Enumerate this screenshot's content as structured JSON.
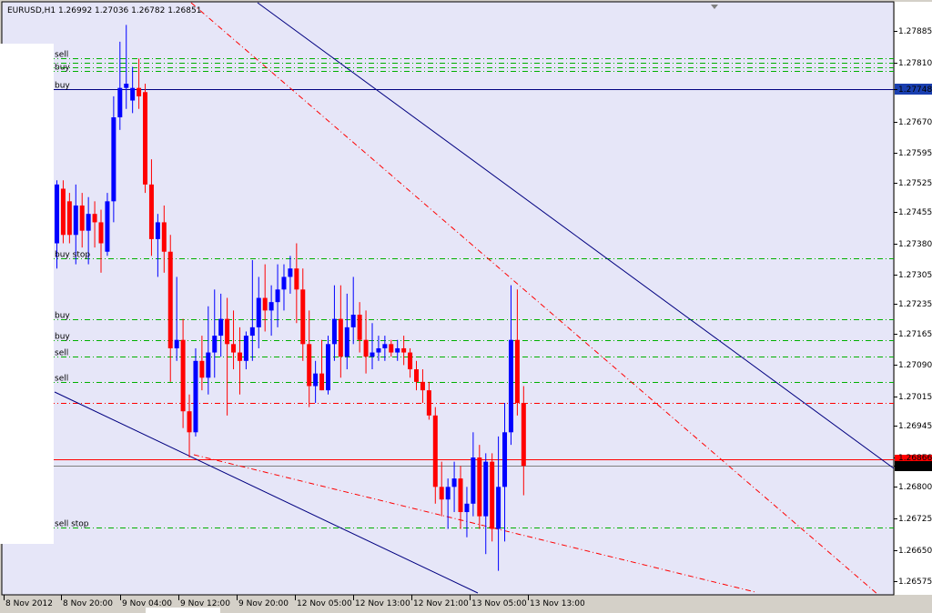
{
  "window": {
    "title": "EURUSD,H1  1.26992 1.27036 1.26782 1.26851"
  },
  "colors": {
    "background": "#e6e6f8",
    "bull": "#0000ff",
    "bear": "#ff0000",
    "grid_level": "#00b000",
    "trend_blue": "#000080",
    "trend_red": "#ff0000",
    "price_label_bg": "#000000",
    "blue_label_bg": "#1a3fb0"
  },
  "chart_data": {
    "type": "candlestick",
    "symbol": "EURUSD",
    "timeframe": "H1",
    "ylim": [
      1.26543,
      1.27955
    ],
    "y_ticks": [
      "1.27885",
      "1.27810",
      "1.27748",
      "1.27670",
      "1.27595",
      "1.27525",
      "1.27455",
      "1.27380",
      "1.27305",
      "1.27235",
      "1.27165",
      "1.27090",
      "1.27015",
      "1.26945",
      "1.26870",
      "1.26851",
      "1.26800",
      "1.26725",
      "1.26650",
      "1.26575"
    ],
    "x_ticks": [
      "8 Nov 2012",
      "8 Nov 20:00",
      "9 Nov 04:00",
      "9 Nov 12:00",
      "9 Nov 20:00",
      "12 Nov 05:00",
      "12 Nov 13:00",
      "12 Nov 21:00",
      "13 Nov 05:00",
      "13 Nov 13:00"
    ],
    "last_price": "1.26851",
    "marker_price": "1.27748",
    "bid_line": "1.26866",
    "candles": [
      {
        "o": 1.2738,
        "h": 1.2753,
        "l": 1.2732,
        "c": 1.2752
      },
      {
        "o": 1.2751,
        "h": 1.2753,
        "l": 1.2738,
        "c": 1.274
      },
      {
        "o": 1.2748,
        "h": 1.275,
        "l": 1.2738,
        "c": 1.274
      },
      {
        "o": 1.274,
        "h": 1.2752,
        "l": 1.2733,
        "c": 1.2747
      },
      {
        "o": 1.2747,
        "h": 1.275,
        "l": 1.2737,
        "c": 1.2741
      },
      {
        "o": 1.2741,
        "h": 1.2749,
        "l": 1.2733,
        "c": 1.2745
      },
      {
        "o": 1.2745,
        "h": 1.2748,
        "l": 1.2737,
        "c": 1.2743
      },
      {
        "o": 1.2743,
        "h": 1.2746,
        "l": 1.2731,
        "c": 1.2738
      },
      {
        "o": 1.2736,
        "h": 1.275,
        "l": 1.2735,
        "c": 1.2748
      },
      {
        "o": 1.2748,
        "h": 1.2773,
        "l": 1.2743,
        "c": 1.2768
      },
      {
        "o": 1.2768,
        "h": 1.2786,
        "l": 1.2765,
        "c": 1.2775
      },
      {
        "o": 1.2775,
        "h": 1.279,
        "l": 1.277,
        "c": 1.2776
      },
      {
        "o": 1.2772,
        "h": 1.278,
        "l": 1.2769,
        "c": 1.2775
      },
      {
        "o": 1.2775,
        "h": 1.2782,
        "l": 1.277,
        "c": 1.2773
      },
      {
        "o": 1.2774,
        "h": 1.2776,
        "l": 1.275,
        "c": 1.2752
      },
      {
        "o": 1.2752,
        "h": 1.2758,
        "l": 1.2735,
        "c": 1.2739
      },
      {
        "o": 1.2739,
        "h": 1.2745,
        "l": 1.273,
        "c": 1.2743
      },
      {
        "o": 1.2743,
        "h": 1.2747,
        "l": 1.2731,
        "c": 1.2736
      },
      {
        "o": 1.2736,
        "h": 1.274,
        "l": 1.2705,
        "c": 1.2713
      },
      {
        "o": 1.2713,
        "h": 1.273,
        "l": 1.271,
        "c": 1.2715
      },
      {
        "o": 1.2715,
        "h": 1.272,
        "l": 1.2694,
        "c": 1.2698
      },
      {
        "o": 1.2698,
        "h": 1.2702,
        "l": 1.2687,
        "c": 1.2693
      },
      {
        "o": 1.2693,
        "h": 1.2713,
        "l": 1.2692,
        "c": 1.271
      },
      {
        "o": 1.271,
        "h": 1.2716,
        "l": 1.2703,
        "c": 1.2706
      },
      {
        "o": 1.2706,
        "h": 1.2723,
        "l": 1.2702,
        "c": 1.2712
      },
      {
        "o": 1.2712,
        "h": 1.2727,
        "l": 1.2706,
        "c": 1.2716
      },
      {
        "o": 1.2716,
        "h": 1.2726,
        "l": 1.2711,
        "c": 1.272
      },
      {
        "o": 1.272,
        "h": 1.2725,
        "l": 1.2697,
        "c": 1.2714
      },
      {
        "o": 1.2714,
        "h": 1.2722,
        "l": 1.2708,
        "c": 1.2712
      },
      {
        "o": 1.2712,
        "h": 1.2718,
        "l": 1.2702,
        "c": 1.271
      },
      {
        "o": 1.271,
        "h": 1.2717,
        "l": 1.2708,
        "c": 1.2716
      },
      {
        "o": 1.2716,
        "h": 1.2734,
        "l": 1.271,
        "c": 1.2718
      },
      {
        "o": 1.2718,
        "h": 1.273,
        "l": 1.2713,
        "c": 1.2725
      },
      {
        "o": 1.2725,
        "h": 1.2733,
        "l": 1.2717,
        "c": 1.2722
      },
      {
        "o": 1.2722,
        "h": 1.2728,
        "l": 1.2716,
        "c": 1.2724
      },
      {
        "o": 1.2724,
        "h": 1.2733,
        "l": 1.2718,
        "c": 1.2727
      },
      {
        "o": 1.2727,
        "h": 1.2733,
        "l": 1.2722,
        "c": 1.273
      },
      {
        "o": 1.273,
        "h": 1.2735,
        "l": 1.2726,
        "c": 1.2732
      },
      {
        "o": 1.2732,
        "h": 1.2738,
        "l": 1.2719,
        "c": 1.2727
      },
      {
        "o": 1.2727,
        "h": 1.2732,
        "l": 1.271,
        "c": 1.2714
      },
      {
        "o": 1.2714,
        "h": 1.2722,
        "l": 1.2699,
        "c": 1.2704
      },
      {
        "o": 1.2704,
        "h": 1.271,
        "l": 1.27,
        "c": 1.2707
      },
      {
        "o": 1.2707,
        "h": 1.2715,
        "l": 1.2703,
        "c": 1.2703
      },
      {
        "o": 1.2703,
        "h": 1.2716,
        "l": 1.2702,
        "c": 1.2714
      },
      {
        "o": 1.2714,
        "h": 1.2728,
        "l": 1.271,
        "c": 1.272
      },
      {
        "o": 1.272,
        "h": 1.2728,
        "l": 1.2706,
        "c": 1.2711
      },
      {
        "o": 1.2711,
        "h": 1.2726,
        "l": 1.2708,
        "c": 1.2718
      },
      {
        "o": 1.2718,
        "h": 1.273,
        "l": 1.2714,
        "c": 1.2721
      },
      {
        "o": 1.2721,
        "h": 1.2724,
        "l": 1.2712,
        "c": 1.2715
      },
      {
        "o": 1.2715,
        "h": 1.2722,
        "l": 1.2707,
        "c": 1.2711
      },
      {
        "o": 1.2711,
        "h": 1.2719,
        "l": 1.2708,
        "c": 1.2712
      },
      {
        "o": 1.2712,
        "h": 1.2716,
        "l": 1.271,
        "c": 1.2713
      },
      {
        "o": 1.2713,
        "h": 1.2716,
        "l": 1.271,
        "c": 1.2714
      },
      {
        "o": 1.2714,
        "h": 1.2715,
        "l": 1.2711,
        "c": 1.2712
      },
      {
        "o": 1.2712,
        "h": 1.2715,
        "l": 1.271,
        "c": 1.2713
      },
      {
        "o": 1.2713,
        "h": 1.2716,
        "l": 1.2709,
        "c": 1.2712
      },
      {
        "o": 1.2712,
        "h": 1.2713,
        "l": 1.2706,
        "c": 1.2708
      },
      {
        "o": 1.2708,
        "h": 1.271,
        "l": 1.2703,
        "c": 1.2705
      },
      {
        "o": 1.2705,
        "h": 1.2708,
        "l": 1.27,
        "c": 1.2703
      },
      {
        "o": 1.2703,
        "h": 1.2705,
        "l": 1.2696,
        "c": 1.2697
      },
      {
        "o": 1.2697,
        "h": 1.2699,
        "l": 1.2676,
        "c": 1.268
      },
      {
        "o": 1.268,
        "h": 1.2686,
        "l": 1.2673,
        "c": 1.2677
      },
      {
        "o": 1.2677,
        "h": 1.2682,
        "l": 1.267,
        "c": 1.268
      },
      {
        "o": 1.268,
        "h": 1.2686,
        "l": 1.2674,
        "c": 1.2682
      },
      {
        "o": 1.2682,
        "h": 1.2685,
        "l": 1.267,
        "c": 1.2674
      },
      {
        "o": 1.2674,
        "h": 1.268,
        "l": 1.2668,
        "c": 1.2676
      },
      {
        "o": 1.2676,
        "h": 1.2693,
        "l": 1.2673,
        "c": 1.2687
      },
      {
        "o": 1.2687,
        "h": 1.269,
        "l": 1.267,
        "c": 1.2673
      },
      {
        "o": 1.2673,
        "h": 1.2688,
        "l": 1.2664,
        "c": 1.2686
      },
      {
        "o": 1.2686,
        "h": 1.2688,
        "l": 1.2667,
        "c": 1.267
      },
      {
        "o": 1.267,
        "h": 1.2692,
        "l": 1.266,
        "c": 1.268
      },
      {
        "o": 1.268,
        "h": 1.27,
        "l": 1.2667,
        "c": 1.2693
      },
      {
        "o": 1.2693,
        "h": 1.2728,
        "l": 1.269,
        "c": 1.2715
      },
      {
        "o": 1.2715,
        "h": 1.2727,
        "l": 1.2697,
        "c": 1.27
      },
      {
        "o": 1.27,
        "h": 1.2704,
        "l": 1.2678,
        "c": 1.2685
      }
    ],
    "levels": [
      {
        "price": 1.2782,
        "label": "sell",
        "style": "dash-dot",
        "color": "green"
      },
      {
        "price": 1.2781,
        "label": "",
        "style": "dash-dot",
        "color": "green"
      },
      {
        "price": 1.278,
        "label": "",
        "style": "dash-dot",
        "color": "green"
      },
      {
        "price": 1.2779,
        "label": "buy",
        "style": "dash-dot",
        "color": "green"
      },
      {
        "price": 1.27748,
        "label": "buy",
        "style": "solid",
        "color": "blue"
      },
      {
        "price": 1.27345,
        "label": "buy stop",
        "style": "dash-dot",
        "color": "green"
      },
      {
        "price": 1.272,
        "label": "buy",
        "style": "dash-dot",
        "color": "green"
      },
      {
        "price": 1.2715,
        "label": "buy",
        "style": "dash-dot",
        "color": "green"
      },
      {
        "price": 1.2711,
        "label": "sell",
        "style": "dash-dot",
        "color": "green"
      },
      {
        "price": 1.2705,
        "label": "sell",
        "style": "dash-dot",
        "color": "green"
      },
      {
        "price": 1.27,
        "label": "",
        "style": "dash-dot",
        "color": "red"
      },
      {
        "price": 1.26866,
        "label": "",
        "style": "solid",
        "color": "red"
      },
      {
        "price": 1.26851,
        "label": "",
        "style": "solid",
        "color": "grey"
      },
      {
        "price": 1.26703,
        "label": "sell stop",
        "style": "dash-dot",
        "color": "green"
      }
    ]
  }
}
